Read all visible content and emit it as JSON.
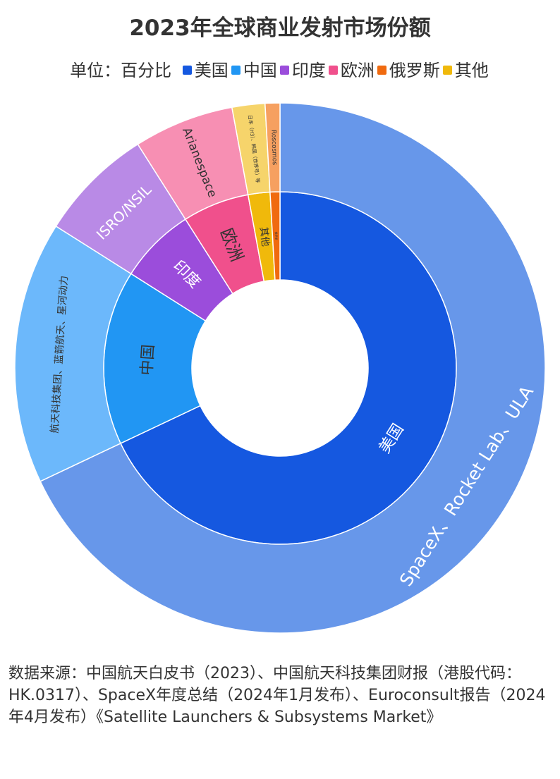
{
  "title": "2023年全球商业发射市场份额",
  "legend": {
    "unit_label": "单位：百分比",
    "items": [
      {
        "label": "美国",
        "color": "#1558e0"
      },
      {
        "label": "中国",
        "color": "#2196f3"
      },
      {
        "label": "印度",
        "color": "#9b4ddb"
      },
      {
        "label": "欧洲",
        "color": "#f0508c"
      },
      {
        "label": "俄罗斯",
        "color": "#f06a0f"
      },
      {
        "label": "其他",
        "color": "#f0b90b"
      }
    ]
  },
  "chart_data": {
    "type": "sunburst",
    "unit": "百分比",
    "segments": [
      {
        "name": "美国",
        "value": 67.9,
        "color": "#1558e0",
        "child": {
          "label": "SpaceX、Rocket Lab、ULA",
          "color": "#6797ea"
        }
      },
      {
        "name": "中国",
        "value": 16.0,
        "color": "#2196f3",
        "child": {
          "label": "航天科技集团、蓝箭航天、星河动力",
          "color": "#6cb8fb"
        }
      },
      {
        "name": "印度",
        "value": 7.0,
        "color": "#9b4ddb",
        "child": {
          "label": "ISRO/NSIL",
          "color": "#b98ae6"
        }
      },
      {
        "name": "欧洲",
        "value": 6.1,
        "color": "#f0508c",
        "child": {
          "label": "Arianespace",
          "color": "#f78fb3"
        }
      },
      {
        "name": "其他",
        "value": 2.0,
        "color": "#f0b90b",
        "child": {
          "label": "日本（H3）、韩国（世界号）等",
          "color": "#f6d46b"
        }
      },
      {
        "name": "俄罗斯",
        "value": 0.9,
        "color": "#f06a0f",
        "child": {
          "label": "Roscosmos",
          "color": "#f6a060"
        }
      }
    ]
  },
  "source": "数据来源：中国航天白皮书（2023）、中国航天科技集团财报（港股代码：HK.0317）、SpaceX年度总结（2024年1月发布）、Euroconsult报告（2024年4月发布）《Satellite Launchers & Subsystems Market》"
}
